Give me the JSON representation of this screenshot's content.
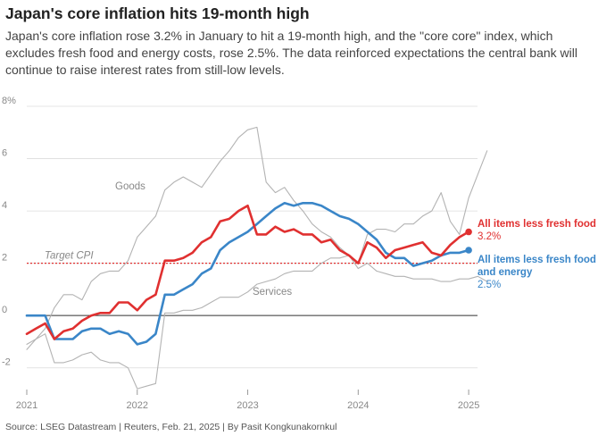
{
  "header": {
    "title": "Japan's core inflation hits 19-month high",
    "subtitle": "Japan's core inflation rose 3.2% in January to hit a 19-month high, and the \"core core\" index, which excludes fresh food and energy costs, rose 2.5%. The data reinforced expectations the central bank will continue to raise interest rates from still-low levels."
  },
  "footer": {
    "source": "Source: LSEG Datastream | Reuters, Feb. 21, 2025 | By Pasit Kongkunakornkul"
  },
  "chart_data": {
    "type": "line",
    "ylim": [
      -3,
      8
    ],
    "xlim": [
      2021.0,
      2025.08
    ],
    "y_ticks": [
      {
        "value": 8,
        "label": "8%"
      },
      {
        "value": 6,
        "label": "6"
      },
      {
        "value": 4,
        "label": "4"
      },
      {
        "value": 2,
        "label": "2"
      },
      {
        "value": 0,
        "label": "0"
      },
      {
        "value": -2,
        "label": "-2"
      }
    ],
    "x_ticks": [
      {
        "value": 2021,
        "label": "2021"
      },
      {
        "value": 2022,
        "label": "2022"
      },
      {
        "value": 2023,
        "label": "2023"
      },
      {
        "value": 2024,
        "label": "2024"
      },
      {
        "value": 2025,
        "label": "2025"
      }
    ],
    "target": {
      "value": 2,
      "label": "Target CPI"
    },
    "start": [
      2021,
      1
    ],
    "series": [
      {
        "key": "goods",
        "name": "Goods",
        "color": "#b3b3b3",
        "values": [
          -1.3,
          -0.9,
          -0.5,
          0.3,
          0.8,
          0.8,
          0.6,
          1.3,
          1.6,
          1.7,
          1.7,
          2.1,
          3.0,
          3.4,
          3.8,
          4.8,
          5.1,
          5.3,
          5.1,
          4.9,
          5.4,
          5.9,
          6.3,
          6.8,
          7.1,
          7.2,
          5.1,
          4.7,
          4.9,
          4.4,
          4.0,
          3.5,
          3.2,
          3.0,
          2.6,
          2.3,
          2.0,
          3.1,
          3.3,
          3.3,
          3.2,
          3.5,
          3.5,
          3.8,
          4.0,
          4.7,
          3.6,
          3.1,
          4.5,
          5.4,
          6.3
        ]
      },
      {
        "key": "services",
        "name": "Services",
        "color": "#b3b3b3",
        "values": [
          -1.1,
          -0.9,
          -0.7,
          -1.8,
          -1.8,
          -1.7,
          -1.5,
          -1.4,
          -1.7,
          -1.8,
          -1.8,
          -2.0,
          -2.8,
          -2.7,
          -2.6,
          0.1,
          0.1,
          0.2,
          0.2,
          0.3,
          0.5,
          0.7,
          0.7,
          0.7,
          0.9,
          1.2,
          1.3,
          1.4,
          1.6,
          1.7,
          1.7,
          1.7,
          2.0,
          2.2,
          2.2,
          2.3,
          1.8,
          2.0,
          1.7,
          1.6,
          1.5,
          1.5,
          1.4,
          1.4,
          1.4,
          1.3,
          1.3,
          1.4,
          1.4,
          1.5,
          1.3
        ]
      },
      {
        "key": "core_core",
        "name": "All items less fresh food and energy",
        "lines": [
          "All items less fresh food",
          "and energy"
        ],
        "value_label": "2.5%",
        "color": "#3a86c8",
        "values": [
          0,
          0,
          0,
          -0.9,
          -0.9,
          -0.9,
          -0.6,
          -0.5,
          -0.5,
          -0.7,
          -0.6,
          -0.7,
          -1.1,
          -1.0,
          -0.7,
          0.8,
          0.8,
          1.0,
          1.2,
          1.6,
          1.8,
          2.5,
          2.8,
          3.0,
          3.2,
          3.5,
          3.8,
          4.1,
          4.3,
          4.2,
          4.3,
          4.3,
          4.2,
          4.0,
          3.8,
          3.7,
          3.5,
          3.2,
          2.9,
          2.4,
          2.2,
          2.2,
          1.9,
          2.0,
          2.1,
          2.3,
          2.4,
          2.4,
          2.5
        ]
      },
      {
        "key": "core",
        "name": "All items less fresh food",
        "lines": [
          "All items less fresh food"
        ],
        "value_label": "3.2%",
        "color": "#e03030",
        "values": [
          -0.7,
          -0.5,
          -0.3,
          -0.9,
          -0.6,
          -0.5,
          -0.2,
          0.0,
          0.1,
          0.1,
          0.5,
          0.5,
          0.2,
          0.6,
          0.8,
          2.1,
          2.1,
          2.2,
          2.4,
          2.8,
          3.0,
          3.6,
          3.7,
          4.0,
          4.2,
          3.1,
          3.1,
          3.4,
          3.2,
          3.3,
          3.1,
          3.1,
          2.8,
          2.9,
          2.5,
          2.3,
          2.0,
          2.8,
          2.6,
          2.2,
          2.5,
          2.6,
          2.7,
          2.8,
          2.4,
          2.3,
          2.7,
          3.0,
          3.2
        ]
      }
    ]
  }
}
